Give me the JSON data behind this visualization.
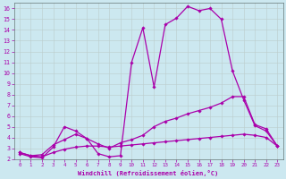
{
  "xlabel": "Windchill (Refroidissement éolien,°C)",
  "bg_color": "#cce8f0",
  "line_color": "#aa00aa",
  "grid_color": "#bbcccc",
  "xlim": [
    -0.5,
    23.5
  ],
  "ylim": [
    2,
    16.5
  ],
  "xticks": [
    0,
    1,
    2,
    3,
    4,
    5,
    6,
    7,
    8,
    9,
    10,
    11,
    12,
    13,
    14,
    15,
    16,
    17,
    18,
    19,
    20,
    21,
    22,
    23
  ],
  "yticks": [
    2,
    3,
    4,
    5,
    6,
    7,
    8,
    9,
    10,
    11,
    12,
    13,
    14,
    15,
    16
  ],
  "line1_x": [
    0,
    1,
    2,
    3,
    4,
    5,
    6,
    7,
    8,
    9,
    10,
    11,
    12,
    13,
    14,
    15,
    16,
    17,
    18,
    19,
    20,
    21,
    22,
    23
  ],
  "line1_y": [
    2.5,
    2.2,
    2.1,
    3.1,
    5.0,
    4.6,
    3.9,
    2.5,
    2.2,
    2.3,
    11.0,
    14.2,
    8.7,
    14.5,
    15.1,
    16.2,
    15.8,
    16.0,
    15.0,
    10.2,
    7.5,
    5.1,
    4.6,
    3.2
  ],
  "line2_x": [
    0,
    1,
    2,
    3,
    4,
    5,
    6,
    7,
    8,
    9,
    10,
    11,
    12,
    13,
    14,
    15,
    16,
    17,
    18,
    19,
    20,
    21,
    22,
    23
  ],
  "line2_y": [
    2.6,
    2.3,
    2.4,
    3.3,
    3.8,
    4.3,
    3.9,
    3.4,
    3.0,
    3.5,
    3.8,
    4.2,
    5.0,
    5.5,
    5.8,
    6.2,
    6.5,
    6.8,
    7.2,
    7.8,
    7.8,
    5.2,
    4.8,
    3.2
  ],
  "line3_x": [
    0,
    1,
    2,
    3,
    4,
    5,
    6,
    7,
    8,
    9,
    10,
    11,
    12,
    13,
    14,
    15,
    16,
    17,
    18,
    19,
    20,
    21,
    22,
    23
  ],
  "line3_y": [
    2.6,
    2.3,
    2.2,
    2.6,
    2.9,
    3.1,
    3.2,
    3.2,
    3.1,
    3.2,
    3.3,
    3.4,
    3.5,
    3.6,
    3.7,
    3.8,
    3.9,
    4.0,
    4.1,
    4.2,
    4.3,
    4.2,
    4.0,
    3.2
  ]
}
